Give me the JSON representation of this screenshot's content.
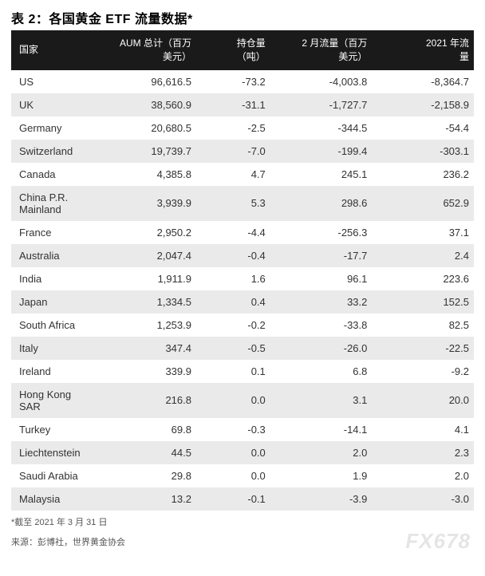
{
  "title": "表 2：各国黄金 ETF 流量数据*",
  "table": {
    "headers": {
      "country": "国家",
      "aum": "AUM 总计（百万\n美元）",
      "holdings": "持仓量\n（吨）",
      "febflow": "2 月流量（百万\n美元）",
      "ytdflow": "2021 年流\n量"
    },
    "rows": [
      {
        "country": "US",
        "aum": "96,616.5",
        "holdings": "-73.2",
        "febflow": "-4,003.8",
        "ytdflow": "-8,364.7"
      },
      {
        "country": "UK",
        "aum": "38,560.9",
        "holdings": "-31.1",
        "febflow": "-1,727.7",
        "ytdflow": "-2,158.9"
      },
      {
        "country": "Germany",
        "aum": "20,680.5",
        "holdings": "-2.5",
        "febflow": "-344.5",
        "ytdflow": "-54.4"
      },
      {
        "country": "Switzerland",
        "aum": "19,739.7",
        "holdings": "-7.0",
        "febflow": "-199.4",
        "ytdflow": "-303.1"
      },
      {
        "country": "Canada",
        "aum": "4,385.8",
        "holdings": "4.7",
        "febflow": "245.1",
        "ytdflow": "236.2"
      },
      {
        "country": "China P.R.\nMainland",
        "aum": "3,939.9",
        "holdings": "5.3",
        "febflow": "298.6",
        "ytdflow": "652.9"
      },
      {
        "country": "France",
        "aum": "2,950.2",
        "holdings": "-4.4",
        "febflow": "-256.3",
        "ytdflow": "37.1"
      },
      {
        "country": "Australia",
        "aum": "2,047.4",
        "holdings": "-0.4",
        "febflow": "-17.7",
        "ytdflow": "2.4"
      },
      {
        "country": "India",
        "aum": "1,911.9",
        "holdings": "1.6",
        "febflow": "96.1",
        "ytdflow": "223.6"
      },
      {
        "country": "Japan",
        "aum": "1,334.5",
        "holdings": "0.4",
        "febflow": "33.2",
        "ytdflow": "152.5"
      },
      {
        "country": "South Africa",
        "aum": "1,253.9",
        "holdings": "-0.2",
        "febflow": "-33.8",
        "ytdflow": "82.5"
      },
      {
        "country": "Italy",
        "aum": "347.4",
        "holdings": "-0.5",
        "febflow": "-26.0",
        "ytdflow": "-22.5"
      },
      {
        "country": "Ireland",
        "aum": "339.9",
        "holdings": "0.1",
        "febflow": "6.8",
        "ytdflow": "-9.2"
      },
      {
        "country": "Hong Kong SAR",
        "aum": "216.8",
        "holdings": "0.0",
        "febflow": "3.1",
        "ytdflow": "20.0"
      },
      {
        "country": "Turkey",
        "aum": "69.8",
        "holdings": "-0.3",
        "febflow": "-14.1",
        "ytdflow": "4.1"
      },
      {
        "country": "Liechtenstein",
        "aum": "44.5",
        "holdings": "0.0",
        "febflow": "2.0",
        "ytdflow": "2.3"
      },
      {
        "country": "Saudi Arabia",
        "aum": "29.8",
        "holdings": "0.0",
        "febflow": "1.9",
        "ytdflow": "2.0"
      },
      {
        "country": "Malaysia",
        "aum": "13.2",
        "holdings": "-0.1",
        "febflow": "-3.9",
        "ytdflow": "-3.0"
      }
    ]
  },
  "footnote1": "*截至 2021 年 3 月 31 日",
  "footnote2": "来源：彭博社，世界黄金协会",
  "watermark": "FX678",
  "style": {
    "header_bg": "#1a1a1a",
    "header_fg": "#ffffff",
    "row_odd_bg": "#ffffff",
    "row_even_bg": "#eaeaea",
    "text_color": "#333333",
    "title_fontsize": 16,
    "body_fontsize": 13,
    "footnote_fontsize": 11
  }
}
